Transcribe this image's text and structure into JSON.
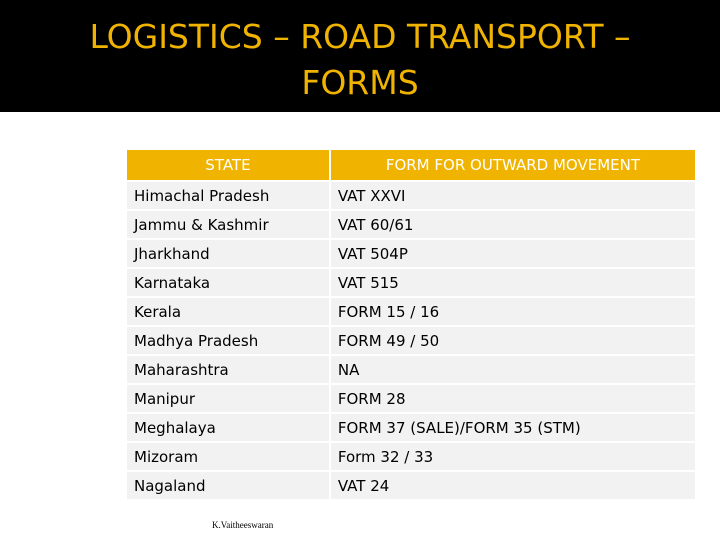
{
  "header": {
    "title": "LOGISTICS – ROAD TRANSPORT – FORMS"
  },
  "table": {
    "columns": [
      "STATE",
      "FORM FOR OUTWARD MOVEMENT"
    ],
    "rows": [
      [
        "Himachal Pradesh",
        "VAT XXVI"
      ],
      [
        "Jammu & Kashmir",
        "VAT 60/61"
      ],
      [
        "Jharkhand",
        "VAT 504P"
      ],
      [
        "Karnataka",
        "VAT 515"
      ],
      [
        "Kerala",
        "FORM 15 / 16"
      ],
      [
        "Madhya Pradesh",
        "FORM 49 / 50"
      ],
      [
        "Maharashtra",
        "NA"
      ],
      [
        "Manipur",
        "FORM 28"
      ],
      [
        "Meghalaya",
        "FORM 37 (SALE)/FORM 35 (STM)"
      ],
      [
        "Mizoram",
        "Form 32 / 33"
      ],
      [
        "Nagaland",
        "VAT 24"
      ]
    ]
  },
  "footer": {
    "author": "K.Vaitheeswaran"
  }
}
